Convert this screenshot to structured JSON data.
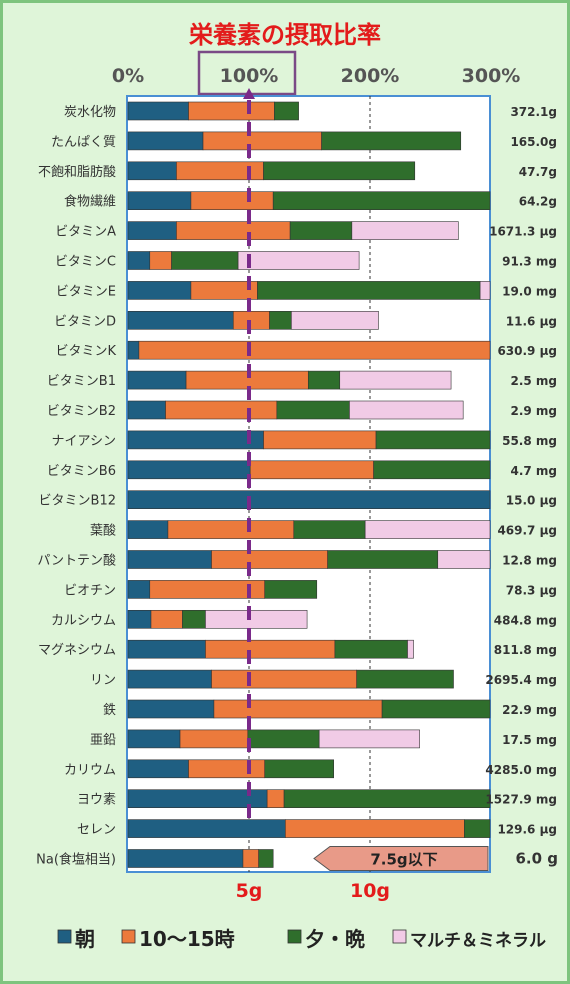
{
  "chart_data": {
    "type": "bar",
    "title": "栄養素の摂取比率",
    "x_ticks": [
      "0%",
      "100%",
      "200%",
      "300%"
    ],
    "xlim": [
      0,
      300
    ],
    "categories": [
      "炭水化物",
      "たんぱく質",
      "不飽和脂肪酸",
      "食物繊維",
      "ビタミンA",
      "ビタミンC",
      "ビタミンE",
      "ビタミンD",
      "ビタミンK",
      "ビタミンB1",
      "ビタミンB2",
      "ナイアシン",
      "ビタミンB6",
      "ビタミンB12",
      "葉酸",
      "パントテン酸",
      "ビオチン",
      "カルシウム",
      "マグネシウム",
      "リン",
      "鉄",
      "亜鉛",
      "カリウム",
      "ヨウ素",
      "セレン",
      "Na(食塩相当)"
    ],
    "totals": [
      "372.1g",
      "165.0g",
      "47.7g",
      "64.2g",
      "1671.3 μg",
      "91.3 mg",
      "19.0 mg",
      "11.6 μg",
      "630.9 μg",
      "2.5 mg",
      "2.9 mg",
      "55.8 mg",
      "4.7 mg",
      "15.0 μg",
      "469.7 μg",
      "12.8 mg",
      "78.3 μg",
      "484.8 mg",
      "811.8 mg",
      "2695.4 mg",
      "22.9 mg",
      "17.5 mg",
      "4285.0 mg",
      "1527.9 mg",
      "129.6 μg",
      "6.0 g"
    ],
    "series": [
      {
        "name": "朝",
        "color": "#1f5f82",
        "values": [
          50,
          62,
          40,
          52,
          40,
          18,
          52,
          87,
          9,
          48,
          31,
          112,
          101,
          300,
          33,
          69,
          18,
          19,
          64,
          69,
          71,
          43,
          50,
          115,
          130,
          95
        ]
      },
      {
        "name": "10～15時",
        "color": "#ec7a3c",
        "values": [
          71,
          98,
          72,
          68,
          94,
          18,
          55,
          30,
          291,
          101,
          92,
          93,
          102,
          0,
          104,
          96,
          95,
          26,
          107,
          120,
          139,
          56,
          63,
          14,
          148,
          13
        ]
      },
      {
        "name": "夕・晩",
        "color": "#2f6e2c",
        "values": [
          20,
          115,
          125,
          180,
          51,
          55,
          184,
          18,
          0,
          26,
          60,
          95,
          97,
          0,
          59,
          91,
          43,
          19,
          60,
          80,
          90,
          59,
          57,
          171,
          22,
          12
        ]
      },
      {
        "name": "マルチ＆ミネラル",
        "color": "#f1cbe6",
        "values": [
          0,
          0,
          0,
          0,
          88,
          100,
          9,
          72,
          0,
          92,
          94,
          0,
          0,
          0,
          104,
          44,
          0,
          84,
          5,
          0,
          0,
          83,
          0,
          0,
          0,
          0
        ]
      }
    ],
    "reference_line": {
      "value": 100,
      "label": "100%"
    },
    "na_scale_labels": [
      "5g",
      "10g"
    ],
    "na_note": "7.5g以下"
  }
}
